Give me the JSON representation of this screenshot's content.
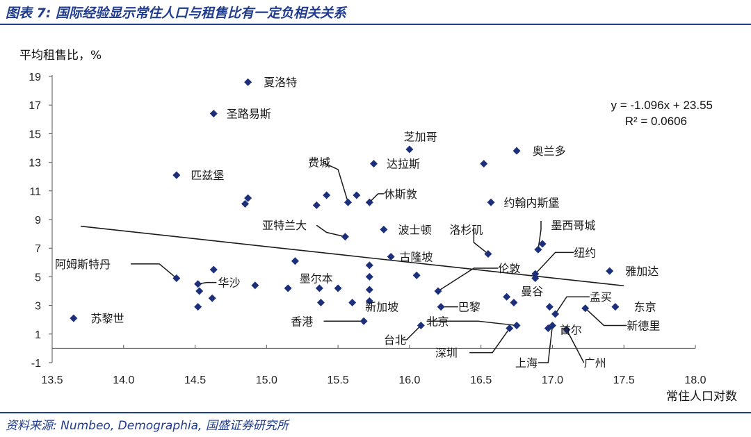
{
  "title": "图表 7: 国际经验显示常住人口与租售比有一定负相关关系",
  "source": "资料来源: Numbeo, Demographia, 国盛证券研究所",
  "colors": {
    "accent": "#1f3c8f",
    "marker": "#1c2f7a",
    "line": "#1a1a1a"
  },
  "chart_data": {
    "type": "scatter",
    "xlabel": "常住人口对数",
    "ylabel": "平均租售比，%",
    "xlim": [
      13.5,
      18.0
    ],
    "ylim": [
      -1,
      19
    ],
    "xticks": [
      "13.5",
      "14.0",
      "14.5",
      "15.0",
      "15.5",
      "16.0",
      "16.5",
      "17.0",
      "17.5",
      "18.0"
    ],
    "yticks": [
      "-1",
      "1",
      "3",
      "5",
      "7",
      "9",
      "11",
      "13",
      "15",
      "17",
      "19"
    ],
    "trendline": {
      "slope": -1.096,
      "intercept": 23.55,
      "x_start": 13.7,
      "x_end": 17.5
    },
    "equation": "y = -1.096x  + 23.55",
    "r2": "R² = 0.0606",
    "points": [
      {
        "x": 14.87,
        "y": 18.6
      },
      {
        "x": 14.63,
        "y": 16.4
      },
      {
        "x": 16.0,
        "y": 13.9
      },
      {
        "x": 16.75,
        "y": 13.8
      },
      {
        "x": 15.75,
        "y": 12.9
      },
      {
        "x": 16.52,
        "y": 12.9
      },
      {
        "x": 14.37,
        "y": 12.1
      },
      {
        "x": 15.42,
        "y": 10.7
      },
      {
        "x": 15.57,
        "y": 10.2
      },
      {
        "x": 15.63,
        "y": 10.7
      },
      {
        "x": 15.72,
        "y": 10.2
      },
      {
        "x": 14.87,
        "y": 10.5
      },
      {
        "x": 14.85,
        "y": 10.1
      },
      {
        "x": 15.35,
        "y": 10.0
      },
      {
        "x": 16.57,
        "y": 10.2
      },
      {
        "x": 15.55,
        "y": 7.8
      },
      {
        "x": 15.82,
        "y": 8.3
      },
      {
        "x": 16.55,
        "y": 6.6
      },
      {
        "x": 16.93,
        "y": 7.3
      },
      {
        "x": 16.9,
        "y": 6.9
      },
      {
        "x": 15.87,
        "y": 6.4
      },
      {
        "x": 15.72,
        "y": 5.8
      },
      {
        "x": 16.05,
        "y": 5.1
      },
      {
        "x": 16.88,
        "y": 5.2
      },
      {
        "x": 16.88,
        "y": 4.9
      },
      {
        "x": 17.4,
        "y": 5.4
      },
      {
        "x": 14.37,
        "y": 4.9
      },
      {
        "x": 14.63,
        "y": 5.5
      },
      {
        "x": 14.52,
        "y": 4.5
      },
      {
        "x": 14.53,
        "y": 4.0
      },
      {
        "x": 14.62,
        "y": 3.5
      },
      {
        "x": 14.52,
        "y": 2.9
      },
      {
        "x": 14.92,
        "y": 4.4
      },
      {
        "x": 15.2,
        "y": 6.1
      },
      {
        "x": 15.15,
        "y": 4.2
      },
      {
        "x": 15.37,
        "y": 4.2
      },
      {
        "x": 15.38,
        "y": 3.2
      },
      {
        "x": 15.5,
        "y": 4.2
      },
      {
        "x": 15.6,
        "y": 3.2
      },
      {
        "x": 15.72,
        "y": 5.0
      },
      {
        "x": 15.72,
        "y": 4.1
      },
      {
        "x": 15.72,
        "y": 3.3
      },
      {
        "x": 16.2,
        "y": 4.0
      },
      {
        "x": 16.22,
        "y": 2.9
      },
      {
        "x": 16.68,
        "y": 3.6
      },
      {
        "x": 16.73,
        "y": 3.2
      },
      {
        "x": 16.98,
        "y": 2.9
      },
      {
        "x": 17.02,
        "y": 2.4
      },
      {
        "x": 17.23,
        "y": 2.8
      },
      {
        "x": 17.44,
        "y": 2.9
      },
      {
        "x": 15.68,
        "y": 1.9
      },
      {
        "x": 16.08,
        "y": 1.6
      },
      {
        "x": 16.75,
        "y": 1.6
      },
      {
        "x": 16.7,
        "y": 1.4
      },
      {
        "x": 16.97,
        "y": 1.4
      },
      {
        "x": 17.0,
        "y": 1.6
      },
      {
        "x": 17.1,
        "y": 1.3
      },
      {
        "x": 13.65,
        "y": 2.1
      }
    ],
    "labels": [
      {
        "text": "夏洛特",
        "x": 14.98,
        "y": 18.6
      },
      {
        "text": "圣路易斯",
        "x": 14.72,
        "y": 16.4
      },
      {
        "text": "芝加哥",
        "x": 15.96,
        "y": 14.8
      },
      {
        "text": "奥兰多",
        "x": 16.86,
        "y": 13.8
      },
      {
        "text": "费城",
        "x": 15.29,
        "y": 13.0
      },
      {
        "text": "达拉斯",
        "x": 15.84,
        "y": 12.9
      },
      {
        "text": "匹兹堡",
        "x": 14.47,
        "y": 12.1
      },
      {
        "text": "休斯敦",
        "x": 15.82,
        "y": 10.8
      },
      {
        "text": "约翰内斯堡",
        "x": 16.66,
        "y": 10.2
      },
      {
        "text": "亚特兰大",
        "x": 14.97,
        "y": 8.6
      },
      {
        "text": "波士顿",
        "x": 15.92,
        "y": 8.3
      },
      {
        "text": "洛杉矶",
        "x": 16.28,
        "y": 8.3
      },
      {
        "text": "墨西哥城",
        "x": 16.99,
        "y": 8.6
      },
      {
        "text": "纽约",
        "x": 17.15,
        "y": 6.7
      },
      {
        "text": "古隆坡",
        "x": 15.93,
        "y": 6.4
      },
      {
        "text": "伦敦",
        "x": 16.62,
        "y": 5.6
      },
      {
        "text": "雅加达",
        "x": 17.51,
        "y": 5.4
      },
      {
        "text": "阿姆斯特丹",
        "x": 13.52,
        "y": 5.9
      },
      {
        "text": "华沙",
        "x": 14.66,
        "y": 4.6
      },
      {
        "text": "墨尔本",
        "x": 15.23,
        "y": 4.9
      },
      {
        "text": "曼谷",
        "x": 16.78,
        "y": 4.0
      },
      {
        "text": "孟买",
        "x": 17.26,
        "y": 3.6
      },
      {
        "text": "东京",
        "x": 17.57,
        "y": 2.9
      },
      {
        "text": "巴黎",
        "x": 16.34,
        "y": 2.9
      },
      {
        "text": "新加坡",
        "x": 15.69,
        "y": 2.9
      },
      {
        "text": "香港",
        "x": 15.17,
        "y": 1.9
      },
      {
        "text": "北京",
        "x": 16.12,
        "y": 1.9
      },
      {
        "text": "新德里",
        "x": 17.52,
        "y": 1.6
      },
      {
        "text": "苏黎世",
        "x": 13.77,
        "y": 2.1
      },
      {
        "text": "首尔",
        "x": 17.05,
        "y": 1.3
      },
      {
        "text": "台北",
        "x": 15.82,
        "y": 0.6
      },
      {
        "text": "深圳",
        "x": 16.18,
        "y": -0.3
      },
      {
        "text": "上海",
        "x": 16.74,
        "y": -1.0
      },
      {
        "text": "广州",
        "x": 17.22,
        "y": -1.0
      }
    ],
    "leaders": [
      [
        [
          15.39,
          13.0
        ],
        [
          15.5,
          12.5
        ],
        [
          15.57,
          10.2
        ]
      ],
      [
        [
          15.82,
          10.8
        ],
        [
          15.78,
          10.8
        ],
        [
          15.72,
          10.2
        ]
      ],
      [
        [
          15.35,
          8.6
        ],
        [
          15.42,
          8.1
        ],
        [
          15.55,
          7.8
        ]
      ],
      [
        [
          16.92,
          8.9
        ],
        [
          16.92,
          8.3
        ],
        [
          16.9,
          6.9
        ]
      ],
      [
        [
          17.15,
          6.7
        ],
        [
          17.02,
          6.7
        ],
        [
          16.88,
          5.2
        ]
      ],
      [
        [
          16.45,
          8.3
        ],
        [
          16.45,
          7.4
        ],
        [
          16.55,
          6.6
        ]
      ],
      [
        [
          16.62,
          5.6
        ],
        [
          16.45,
          5.6
        ],
        [
          16.2,
          4.0
        ]
      ],
      [
        [
          14.05,
          5.9
        ],
        [
          14.25,
          5.9
        ],
        [
          14.37,
          4.9
        ]
      ],
      [
        [
          14.65,
          4.6
        ],
        [
          14.58,
          4.6
        ],
        [
          14.52,
          4.5
        ]
      ],
      [
        [
          17.26,
          3.6
        ],
        [
          17.1,
          3.6
        ],
        [
          17.02,
          2.4
        ]
      ],
      [
        [
          16.34,
          2.9
        ],
        [
          16.27,
          2.9
        ],
        [
          16.22,
          2.9
        ]
      ],
      [
        [
          15.4,
          1.9
        ],
        [
          15.68,
          1.9
        ]
      ],
      [
        [
          16.12,
          1.9
        ],
        [
          16.48,
          1.9
        ],
        [
          16.75,
          1.6
        ]
      ],
      [
        [
          17.52,
          1.6
        ],
        [
          17.36,
          1.6
        ],
        [
          17.23,
          2.8
        ]
      ],
      [
        [
          15.95,
          0.6
        ],
        [
          15.98,
          0.6
        ],
        [
          16.08,
          1.6
        ]
      ],
      [
        [
          16.42,
          -0.3
        ],
        [
          16.58,
          -0.3
        ],
        [
          16.7,
          1.4
        ]
      ],
      [
        [
          16.9,
          -1.0
        ],
        [
          16.97,
          -1.0
        ],
        [
          17.0,
          1.6
        ]
      ],
      [
        [
          17.22,
          -1.0
        ],
        [
          17.1,
          1.3
        ]
      ]
    ]
  }
}
